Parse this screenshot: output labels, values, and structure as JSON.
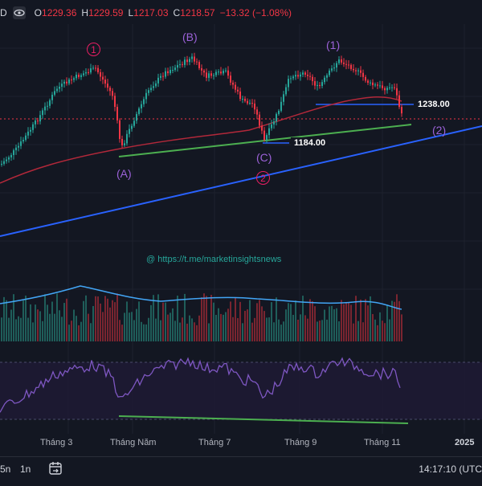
{
  "ohlc": {
    "symbol_tail": "D",
    "o_label": "O",
    "o_value": "1229.36",
    "h_label": "H",
    "h_value": "1229.59",
    "l_label": "L",
    "l_value": "1217.03",
    "c_label": "C",
    "c_value": "1218.57",
    "change": "−13.32 (−1.08%)"
  },
  "price_tags": {
    "level_1238": "1238.00",
    "level_1184": "1184.00"
  },
  "waves": {
    "w1_top_left": "1",
    "wB": "(B)",
    "w1_top_right": "(1)",
    "wA": "(A)",
    "wC": "(C)",
    "w2_circle": "2",
    "w2_paren": "(2)"
  },
  "watermark": "@ https://t.me/marketinsightsnews",
  "x_axis": [
    "Tháng 3",
    "Tháng Năm",
    "Tháng 7",
    "Tháng 9",
    "Tháng 11",
    "2025"
  ],
  "bottom": {
    "tf1": "5n",
    "tf2": "1n",
    "clock": "14:17:10 (UTC"
  },
  "colors": {
    "up": "#26a69a",
    "down": "#f23645",
    "ma": "#b2283a",
    "trend_blue": "#2962ff",
    "trend_green": "#4caf50",
    "rsi": "#7e57c2",
    "vol_ma": "#42a5f5"
  },
  "chart_data": {
    "type": "candlestick",
    "title": "",
    "price_levels": [
      1238.0,
      1184.0
    ],
    "last_close": 1218.57
  }
}
